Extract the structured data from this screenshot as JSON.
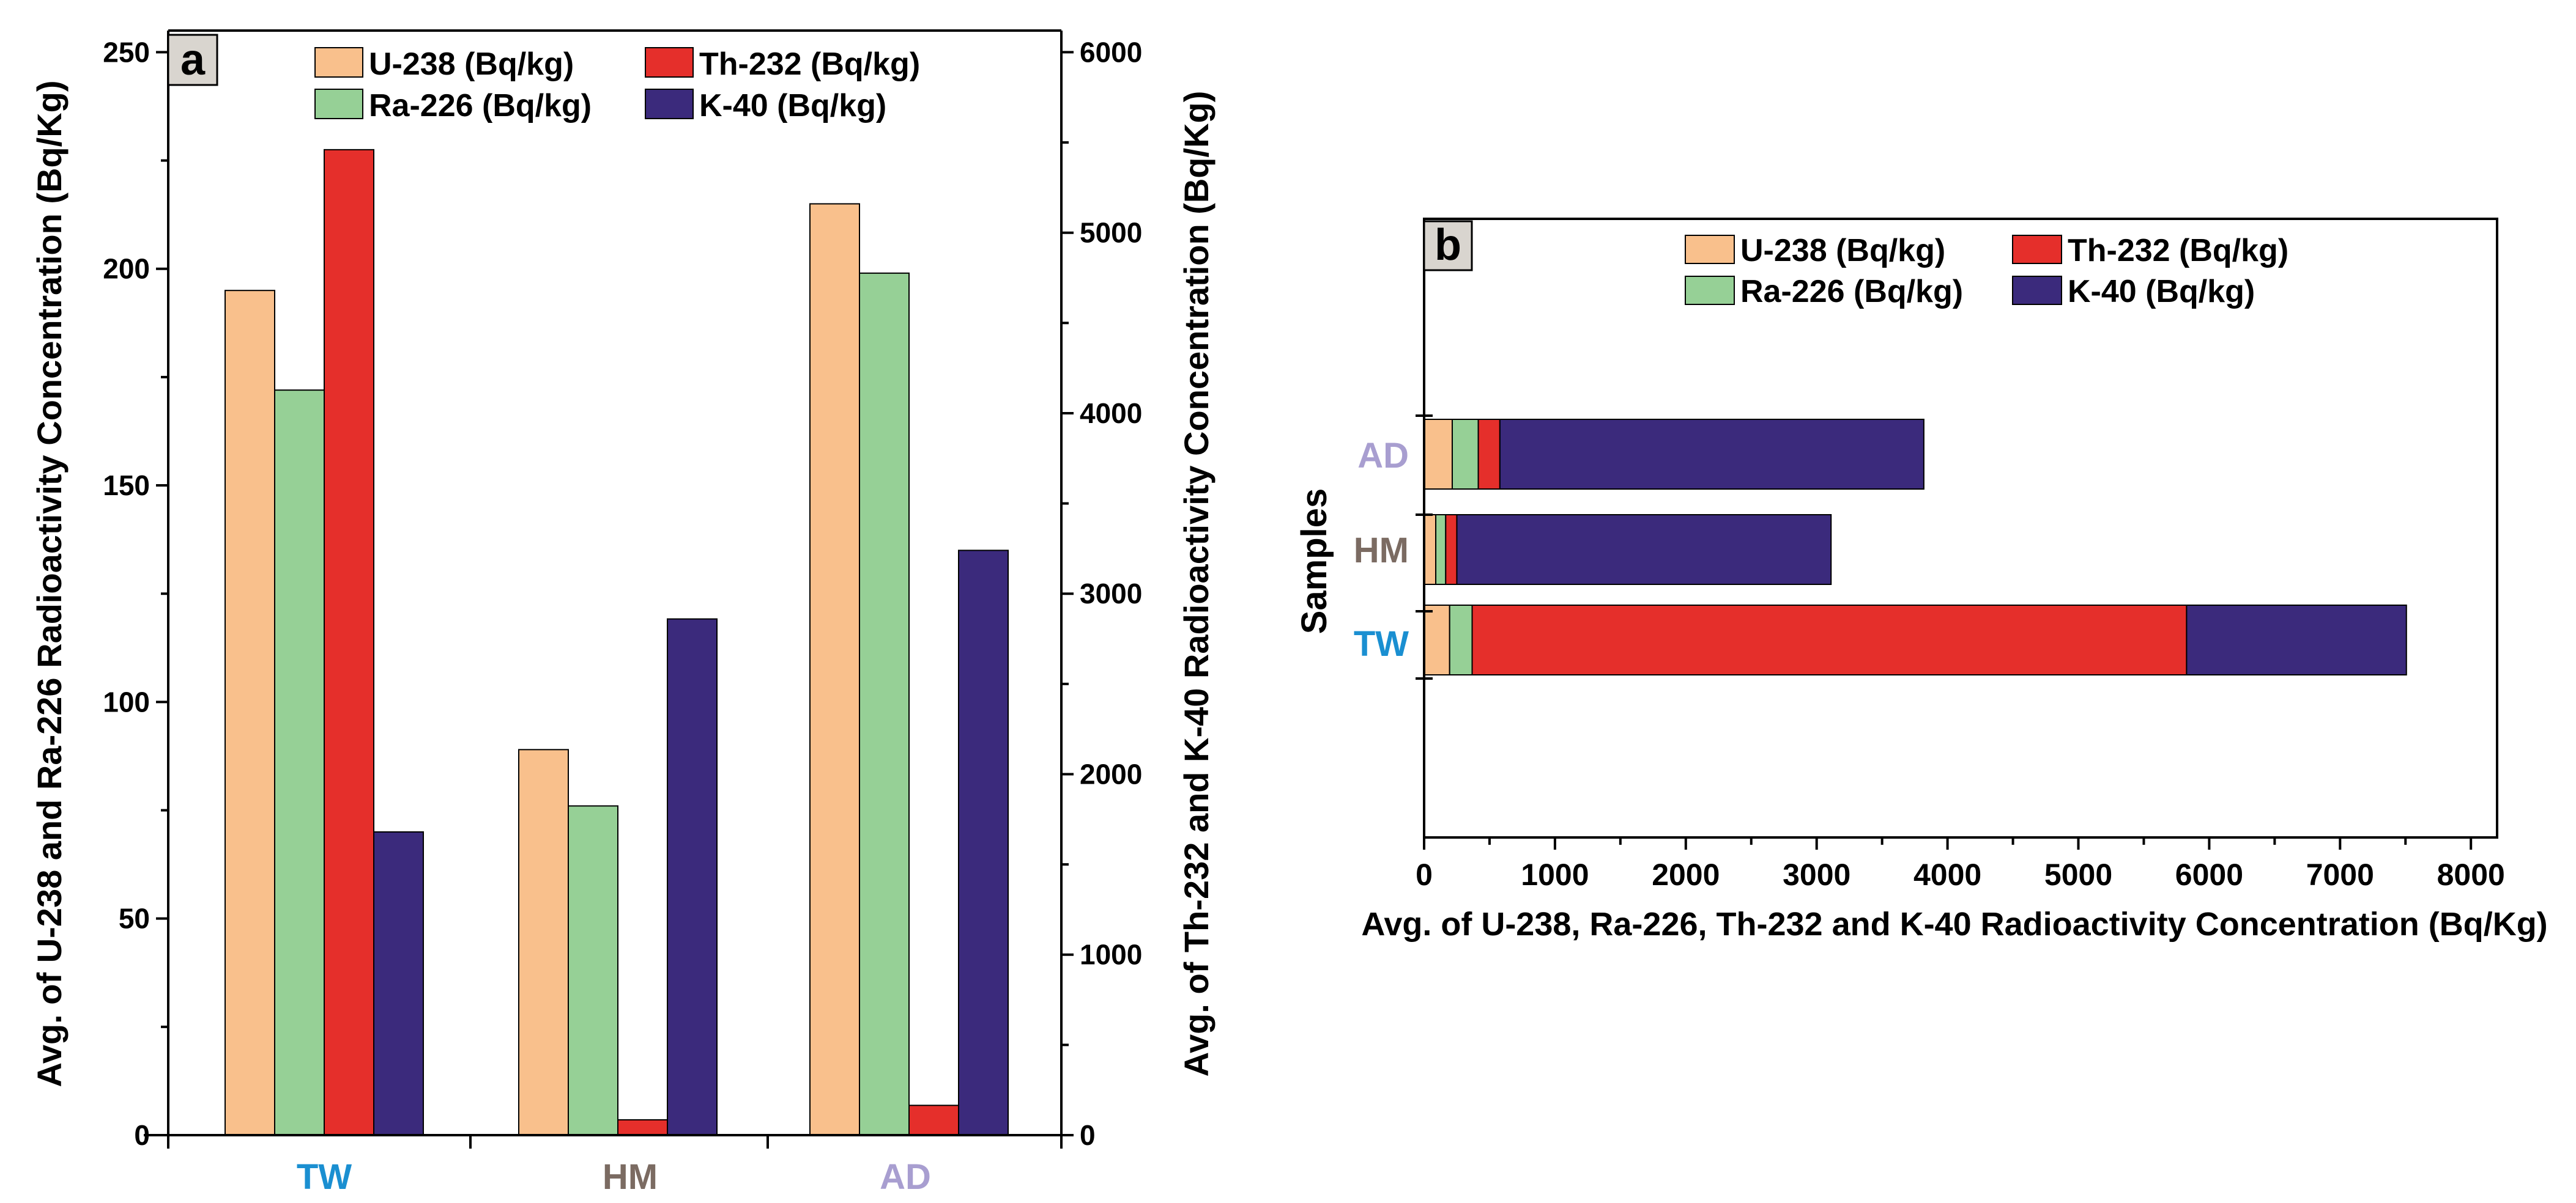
{
  "chart_data": [
    {
      "panel": "a",
      "type": "bar",
      "categories": [
        "TW",
        "HM",
        "AD"
      ],
      "category_colors": [
        "#1a8fd1",
        "#7b6b62",
        "#a89ed0"
      ],
      "series": [
        {
          "name": "U-238 (Bq/kg)",
          "axis": "left",
          "color": "#f9c08c",
          "values": [
            195,
            89,
            215
          ]
        },
        {
          "name": "Ra-226 (Bq/kg)",
          "axis": "left",
          "color": "#96d096",
          "values": [
            172,
            76,
            199
          ]
        },
        {
          "name": "Th-232 (Bq/kg)",
          "axis": "right",
          "color": "#e52f2b",
          "values": [
            5460,
            85,
            165
          ]
        },
        {
          "name": "K-40 (Bq/kg)",
          "axis": "right",
          "color": "#3b2a7c",
          "values": [
            1680,
            2860,
            3240
          ]
        }
      ],
      "legend_order": [
        0,
        2,
        1,
        3
      ],
      "ylabel_left": "Avg. of U-238 and Ra-226 Radioactivity Concentration (Bq/Kg)",
      "ylabel_right": "Avg. of Th-232 and K-40 Radioactivity Concentration (Bq/Kg)",
      "ylim_left": [
        0,
        255
      ],
      "ylim_right": [
        0,
        6120
      ],
      "yticks_left": [
        0,
        50,
        100,
        150,
        200,
        250
      ],
      "yticks_right": [
        0,
        1000,
        2000,
        3000,
        4000,
        5000,
        6000
      ],
      "label": "a"
    },
    {
      "panel": "b",
      "type": "bar",
      "orientation": "horizontal",
      "stacked": true,
      "categories": [
        "AD",
        "HM",
        "TW"
      ],
      "category_colors": [
        "#a89ed0",
        "#7b6b62",
        "#1a8fd1"
      ],
      "series": [
        {
          "name": "U-238 (Bq/kg)",
          "color": "#f9c08c",
          "values": [
            215,
            89,
            195
          ]
        },
        {
          "name": "Ra-226 (Bq/kg)",
          "color": "#96d096",
          "values": [
            199,
            76,
            172
          ]
        },
        {
          "name": "Th-232 (Bq/kg)",
          "color": "#e52f2b",
          "values": [
            165,
            85,
            5460
          ]
        },
        {
          "name": "K-40 (Bq/kg)",
          "color": "#3b2a7c",
          "values": [
            3240,
            2860,
            1680
          ]
        }
      ],
      "legend_order": [
        0,
        2,
        1,
        3
      ],
      "xlabel": "Avg. of U-238, Ra-226, Th-232 and K-40 Radioactivity Concentration (Bq/Kg)",
      "ylabel": "Samples",
      "xlim": [
        0,
        8200
      ],
      "xticks": [
        0,
        1000,
        2000,
        3000,
        4000,
        5000,
        6000,
        7000,
        8000
      ],
      "label": "b"
    }
  ]
}
